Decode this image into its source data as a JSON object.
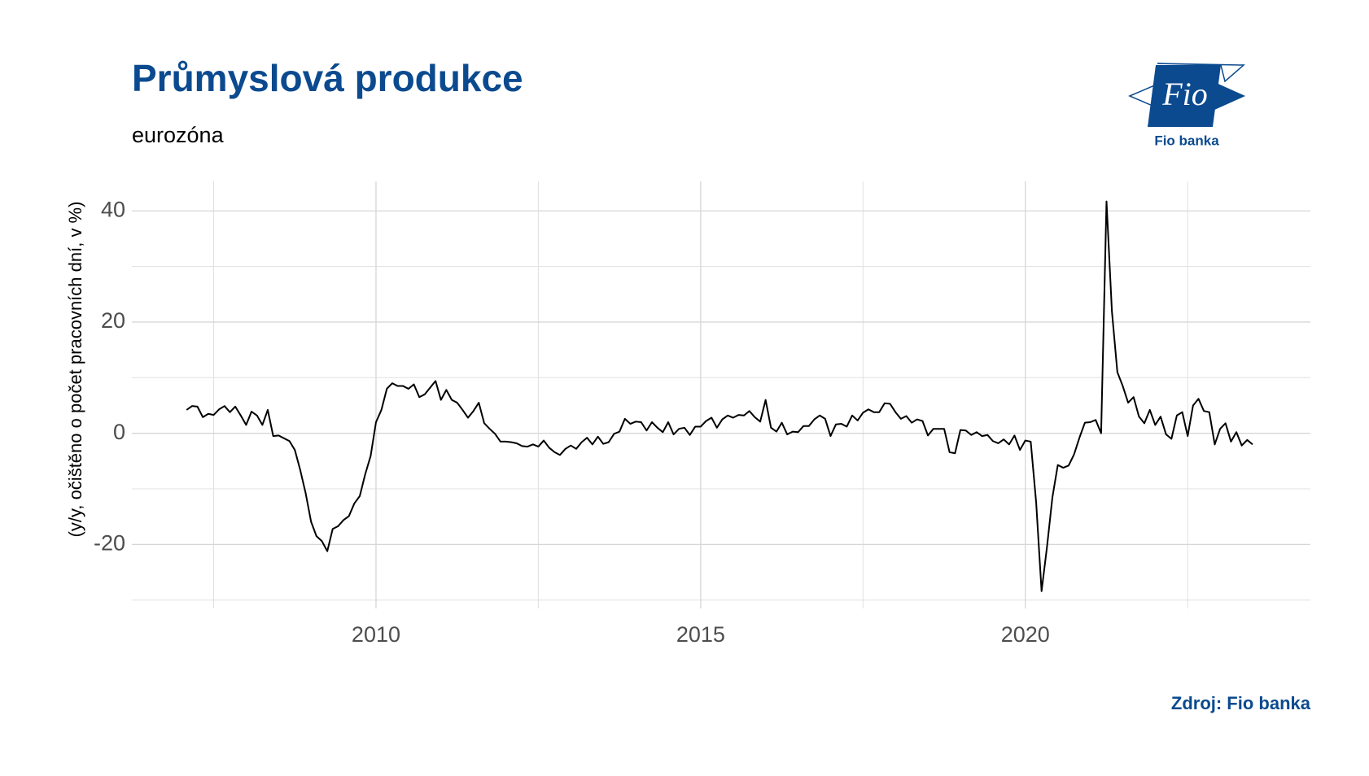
{
  "chart_data": {
    "type": "line",
    "title": "Průmyslová produkce",
    "subtitle": "eurozóna",
    "y_label": "(y/y, očištěno o počet pracovních dní, v %)",
    "source": "Zdroj: Fio banka",
    "logo": {
      "mark": "Fio",
      "name": "Fio banka"
    },
    "color": "#000000",
    "grid": true,
    "xlim": [
      2006.24,
      2024.39
    ],
    "ylim": [
      -31.5,
      45.3
    ],
    "xticks": [
      2010,
      2015,
      2020
    ],
    "xminor": [
      2007.5,
      2012.5,
      2017.5,
      2022.5
    ],
    "yticks": [
      -20,
      0,
      20,
      40
    ],
    "yminor": [
      -30,
      -10,
      10,
      30
    ],
    "x": [
      2007.083,
      2007.167,
      2007.25,
      2007.333,
      2007.417,
      2007.5,
      2007.583,
      2007.667,
      2007.75,
      2007.833,
      2007.917,
      2008.0,
      2008.083,
      2008.167,
      2008.25,
      2008.333,
      2008.417,
      2008.5,
      2008.583,
      2008.667,
      2008.75,
      2008.833,
      2008.917,
      2009.0,
      2009.083,
      2009.167,
      2009.25,
      2009.333,
      2009.417,
      2009.5,
      2009.583,
      2009.667,
      2009.75,
      2009.833,
      2009.917,
      2010.0,
      2010.083,
      2010.167,
      2010.25,
      2010.333,
      2010.417,
      2010.5,
      2010.583,
      2010.667,
      2010.75,
      2010.833,
      2010.917,
      2011.0,
      2011.083,
      2011.167,
      2011.25,
      2011.333,
      2011.417,
      2011.5,
      2011.583,
      2011.667,
      2011.75,
      2011.833,
      2011.917,
      2012.0,
      2012.083,
      2012.167,
      2012.25,
      2012.333,
      2012.417,
      2012.5,
      2012.583,
      2012.667,
      2012.75,
      2012.833,
      2012.917,
      2013.0,
      2013.083,
      2013.167,
      2013.25,
      2013.333,
      2013.417,
      2013.5,
      2013.583,
      2013.667,
      2013.75,
      2013.833,
      2013.917,
      2014.0,
      2014.083,
      2014.167,
      2014.25,
      2014.333,
      2014.417,
      2014.5,
      2014.583,
      2014.667,
      2014.75,
      2014.833,
      2014.917,
      2015.0,
      2015.083,
      2015.167,
      2015.25,
      2015.333,
      2015.417,
      2015.5,
      2015.583,
      2015.667,
      2015.75,
      2015.833,
      2015.917,
      2016.0,
      2016.083,
      2016.167,
      2016.25,
      2016.333,
      2016.417,
      2016.5,
      2016.583,
      2016.667,
      2016.75,
      2016.833,
      2016.917,
      2017.0,
      2017.083,
      2017.167,
      2017.25,
      2017.333,
      2017.417,
      2017.5,
      2017.583,
      2017.667,
      2017.75,
      2017.833,
      2017.917,
      2018.0,
      2018.083,
      2018.167,
      2018.25,
      2018.333,
      2018.417,
      2018.5,
      2018.583,
      2018.667,
      2018.75,
      2018.833,
      2018.917,
      2019.0,
      2019.083,
      2019.167,
      2019.25,
      2019.333,
      2019.417,
      2019.5,
      2019.583,
      2019.667,
      2019.75,
      2019.833,
      2019.917,
      2020.0,
      2020.083,
      2020.167,
      2020.25,
      2020.333,
      2020.417,
      2020.5,
      2020.583,
      2020.667,
      2020.75,
      2020.833,
      2020.917,
      2021.0,
      2021.083,
      2021.167,
      2021.25,
      2021.333,
      2021.417,
      2021.5,
      2021.583,
      2021.667,
      2021.75,
      2021.833,
      2021.917,
      2022.0,
      2022.083,
      2022.167,
      2022.25,
      2022.333,
      2022.417,
      2022.5,
      2022.583,
      2022.667,
      2022.75,
      2022.833,
      2022.917,
      2023.0,
      2023.083,
      2023.167,
      2023.25,
      2023.333,
      2023.417,
      2023.5
    ],
    "values": [
      4.2,
      4.9,
      4.8,
      2.9,
      3.5,
      3.3,
      4.3,
      4.9,
      3.8,
      4.8,
      3.2,
      1.5,
      3.9,
      3.2,
      1.5,
      4.2,
      -0.5,
      -0.4,
      -0.9,
      -1.4,
      -3.0,
      -6.6,
      -10.8,
      -15.9,
      -18.5,
      -19.4,
      -21.2,
      -17.2,
      -16.7,
      -15.6,
      -14.9,
      -12.6,
      -11.3,
      -7.4,
      -4.1,
      2.0,
      4.2,
      8.0,
      9.0,
      8.5,
      8.5,
      8.0,
      8.8,
      6.5,
      7.0,
      8.2,
      9.4,
      6.0,
      7.8,
      6.0,
      5.5,
      4.2,
      2.8,
      4.0,
      5.5,
      1.8,
      0.8,
      -0.1,
      -1.5,
      -1.5,
      -1.6,
      -1.8,
      -2.3,
      -2.4,
      -2.0,
      -2.4,
      -1.3,
      -2.6,
      -3.4,
      -3.9,
      -2.8,
      -2.2,
      -2.8,
      -1.6,
      -0.8,
      -2.0,
      -0.6,
      -1.9,
      -1.6,
      -0.1,
      0.3,
      2.6,
      1.7,
      2.1,
      2.0,
      0.5,
      2.0,
      1.0,
      0.2,
      2.0,
      -0.2,
      0.8,
      1.0,
      -0.3,
      1.2,
      1.2,
      2.2,
      2.8,
      1.0,
      2.5,
      3.2,
      2.8,
      3.3,
      3.2,
      4.0,
      2.9,
      2.1,
      6.0,
      1.0,
      0.3,
      1.9,
      -0.2,
      0.3,
      0.2,
      1.3,
      1.3,
      2.5,
      3.2,
      2.6,
      -0.5,
      1.6,
      1.7,
      1.2,
      3.2,
      2.3,
      3.7,
      4.3,
      3.8,
      3.8,
      5.4,
      5.3,
      3.8,
      2.6,
      3.1,
      1.9,
      2.5,
      2.2,
      -0.4,
      0.8,
      0.8,
      0.8,
      -3.4,
      -3.6,
      0.6,
      0.5,
      -0.3,
      0.2,
      -0.5,
      -0.3,
      -1.4,
      -1.8,
      -1.1,
      -2.0,
      -0.4,
      -3.0,
      -1.3,
      -1.5,
      -12.5,
      -28.4,
      -20.5,
      -11.5,
      -5.7,
      -6.2,
      -5.8,
      -3.8,
      -0.8,
      1.9,
      2.0,
      2.4,
      0.0,
      41.7,
      22.0,
      11.0,
      8.5,
      5.5,
      6.5,
      3.0,
      1.8,
      4.2,
      1.5,
      3.0,
      -0.2,
      -1.0,
      3.2,
      3.8,
      -0.5,
      5.0,
      6.2,
      4.0,
      3.8,
      -2.0,
      0.8,
      1.8,
      -1.5,
      0.2,
      -2.2,
      -1.2,
      -2.0
    ]
  }
}
